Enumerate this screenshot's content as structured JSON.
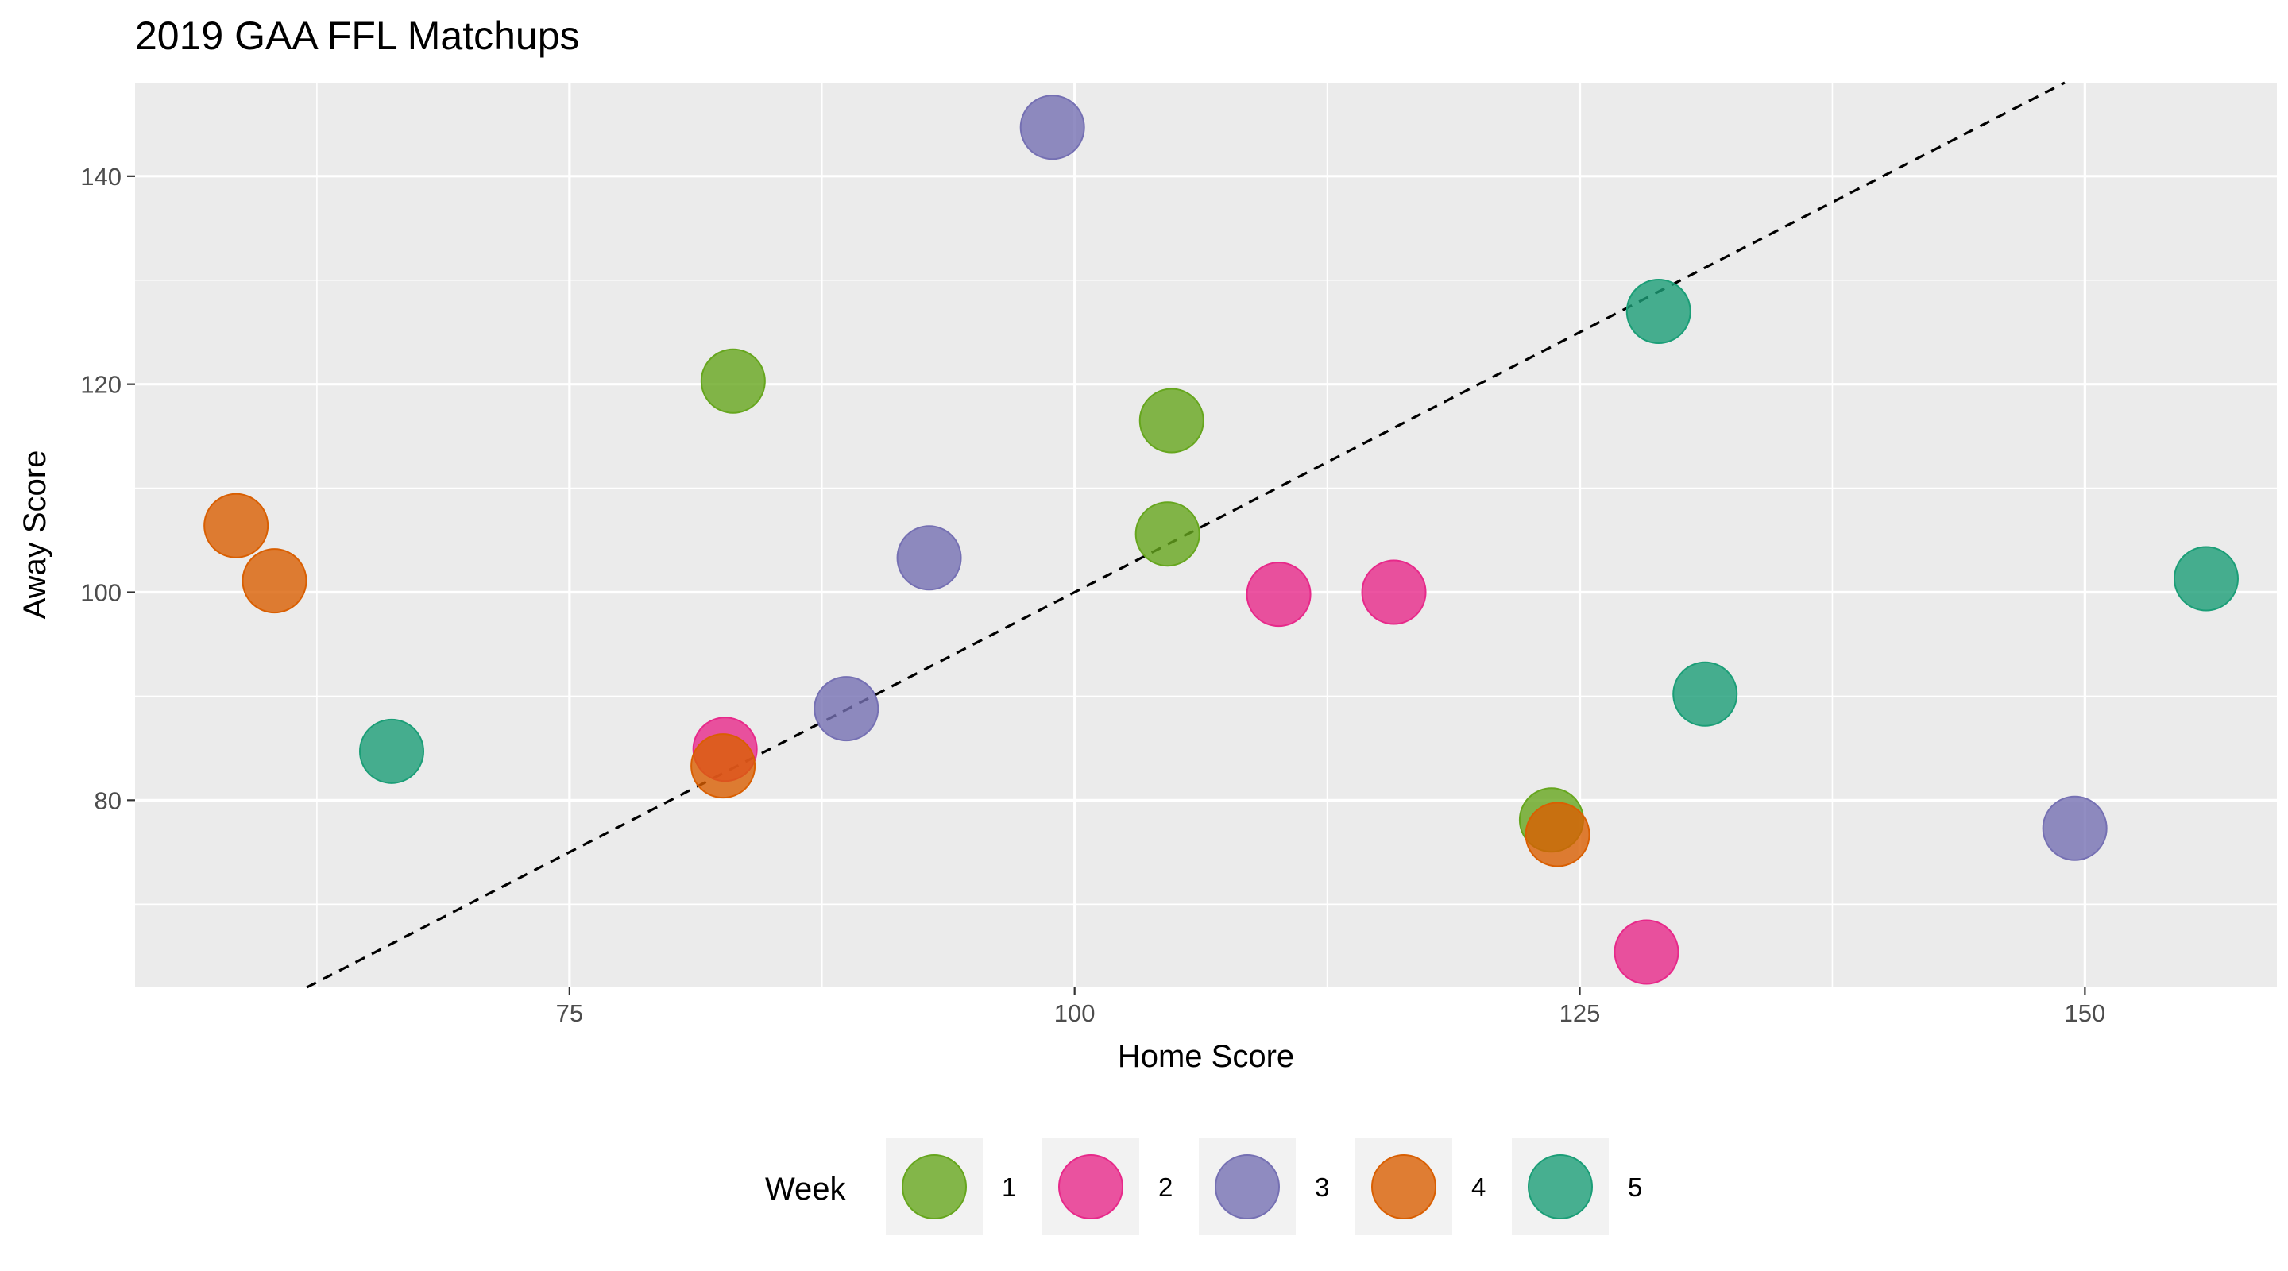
{
  "chart_data": {
    "type": "scatter",
    "title": "2019 GAA FFL Matchups",
    "xlabel": "Home Score",
    "ylabel": "Away Score",
    "xlim": [
      53.5,
      159.5
    ],
    "ylim": [
      62,
      149
    ],
    "x_ticks": [
      75,
      100,
      125,
      150
    ],
    "y_ticks": [
      80,
      100,
      120,
      140
    ],
    "grid": true,
    "reference_line": {
      "type": "identity",
      "style": "dashed",
      "color": "#000000"
    },
    "point_alpha": 0.8,
    "legend": {
      "title": "Week",
      "position": "bottom"
    },
    "series": [
      {
        "name": "1",
        "color": "#66A61E",
        "x": [
          83.1,
          104.8,
          104.6,
          123.6
        ],
        "y": [
          120.3,
          116.5,
          105.6,
          78.1
        ]
      },
      {
        "name": "2",
        "color": "#E7298A",
        "x": [
          82.7,
          110.1,
          115.8,
          128.3
        ],
        "y": [
          84.9,
          99.8,
          100.0,
          65.4
        ]
      },
      {
        "name": "3",
        "color": "#7570B3",
        "x": [
          98.9,
          92.8,
          88.7,
          149.5
        ],
        "y": [
          144.7,
          103.3,
          88.8,
          77.3
        ]
      },
      {
        "name": "4",
        "color": "#D95F02",
        "x": [
          58.5,
          60.4,
          82.6,
          123.9
        ],
        "y": [
          106.4,
          101.1,
          83.3,
          76.7
        ]
      },
      {
        "name": "5",
        "color": "#1B9E77",
        "x": [
          66.2,
          128.9,
          131.2,
          156.0
        ],
        "y": [
          84.7,
          127.0,
          90.2,
          101.3
        ]
      }
    ]
  }
}
